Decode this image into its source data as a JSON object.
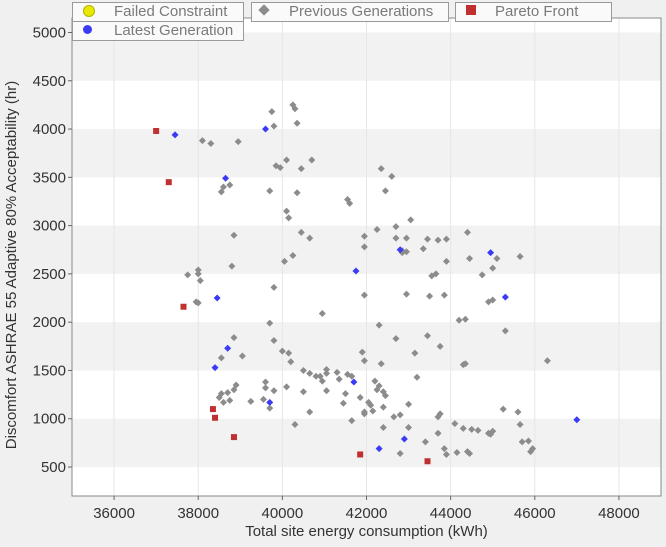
{
  "colors": {
    "plot_bg": "#ffffff",
    "band": "#f2f2f2",
    "page_bg": "#f0f0f0",
    "previous": "#8c8c8c",
    "latest": "#3b3bf5",
    "pareto": "#c03030",
    "failed": "#e8e800",
    "grid": "#e6e6e6",
    "axis_text": "#333333"
  },
  "legend": {
    "failed_constraint": "Failed Constraint",
    "previous_generations": "Previous Generations",
    "pareto_front": "Pareto Front",
    "latest_generation": "Latest Generation"
  },
  "chart_data": {
    "type": "scatter",
    "xlabel": "Total site energy consumption (kWh)",
    "ylabel": "Discomfort ASHRAE 55 Adaptive 80% Acceptability (hr)",
    "xlim": [
      35000,
      49000
    ],
    "ylim": [
      200,
      5150
    ],
    "xticks": [
      "36000",
      "38000",
      "40000",
      "42000",
      "44000",
      "46000",
      "48000"
    ],
    "yticks": [
      "500",
      "1000",
      "1500",
      "2000",
      "2500",
      "3000",
      "3500",
      "4000",
      "4500",
      "5000"
    ],
    "grid": true,
    "legend_position": "top",
    "series": [
      {
        "name": "Previous Generations",
        "marker": "diamond",
        "points": [
          [
            38100,
            3880
          ],
          [
            38300,
            3850
          ],
          [
            38950,
            3870
          ],
          [
            39750,
            4180
          ],
          [
            39800,
            4030
          ],
          [
            40250,
            4250
          ],
          [
            40300,
            4210
          ],
          [
            40350,
            4060
          ],
          [
            38550,
            3350
          ],
          [
            38600,
            3400
          ],
          [
            38750,
            3420
          ],
          [
            39700,
            3360
          ],
          [
            39850,
            3620
          ],
          [
            39950,
            3600
          ],
          [
            40100,
            3680
          ],
          [
            40350,
            3340
          ],
          [
            40450,
            3590
          ],
          [
            40700,
            3680
          ],
          [
            41550,
            3270
          ],
          [
            41600,
            3230
          ],
          [
            42350,
            3590
          ],
          [
            42450,
            3360
          ],
          [
            42600,
            3510
          ],
          [
            40100,
            3150
          ],
          [
            40150,
            3080
          ],
          [
            40450,
            2930
          ],
          [
            40650,
            2870
          ],
          [
            41950,
            2780
          ],
          [
            41950,
            2890
          ],
          [
            42250,
            2960
          ],
          [
            42700,
            2870
          ],
          [
            42700,
            2990
          ],
          [
            42850,
            2720
          ],
          [
            42950,
            2870
          ],
          [
            43050,
            3060
          ],
          [
            38850,
            2900
          ],
          [
            38800,
            2580
          ],
          [
            37750,
            2490
          ],
          [
            38000,
            2500
          ],
          [
            38050,
            2430
          ],
          [
            39800,
            2360
          ],
          [
            40050,
            2630
          ],
          [
            40250,
            2690
          ],
          [
            42850,
            2740
          ],
          [
            42950,
            2730
          ],
          [
            43350,
            2760
          ],
          [
            43450,
            2860
          ],
          [
            43700,
            2850
          ],
          [
            43900,
            2860
          ],
          [
            43550,
            2480
          ],
          [
            43900,
            2630
          ],
          [
            43650,
            2500
          ],
          [
            44400,
            2930
          ],
          [
            44750,
            2490
          ],
          [
            45000,
            2560
          ],
          [
            45100,
            2660
          ],
          [
            45650,
            2680
          ],
          [
            44450,
            2660
          ],
          [
            37950,
            2210
          ],
          [
            38000,
            2200
          ],
          [
            38000,
            2540
          ],
          [
            40950,
            2090
          ],
          [
            41950,
            2280
          ],
          [
            42950,
            2290
          ],
          [
            43500,
            2270
          ],
          [
            43850,
            2280
          ],
          [
            44350,
            2030
          ],
          [
            44900,
            2210
          ],
          [
            45000,
            2230
          ],
          [
            45300,
            1910
          ],
          [
            44200,
            2020
          ],
          [
            38850,
            1840
          ],
          [
            39050,
            1650
          ],
          [
            39700,
            1990
          ],
          [
            39800,
            1810
          ],
          [
            40000,
            1700
          ],
          [
            40150,
            1680
          ],
          [
            40200,
            1590
          ],
          [
            40500,
            1500
          ],
          [
            41900,
            1690
          ],
          [
            41950,
            1600
          ],
          [
            42350,
            1570
          ],
          [
            42700,
            1830
          ],
          [
            43150,
            1680
          ],
          [
            43450,
            1860
          ],
          [
            43750,
            1750
          ],
          [
            44350,
            1570
          ],
          [
            44300,
            1560
          ],
          [
            42300,
            1970
          ],
          [
            38550,
            1630
          ],
          [
            38500,
            1220
          ],
          [
            38550,
            1260
          ],
          [
            38600,
            1170
          ],
          [
            38700,
            1270
          ],
          [
            38750,
            1190
          ],
          [
            38850,
            1300
          ],
          [
            38900,
            1350
          ],
          [
            39250,
            1180
          ],
          [
            39550,
            1200
          ],
          [
            39600,
            1320
          ],
          [
            39600,
            1380
          ],
          [
            39700,
            1110
          ],
          [
            39800,
            1290
          ],
          [
            40100,
            1330
          ],
          [
            40500,
            1280
          ],
          [
            40650,
            1470
          ],
          [
            40650,
            1070
          ],
          [
            40800,
            1440
          ],
          [
            40900,
            1440
          ],
          [
            40950,
            1390
          ],
          [
            41050,
            1510
          ],
          [
            41050,
            1470
          ],
          [
            41050,
            1290
          ],
          [
            41300,
            1480
          ],
          [
            41350,
            1410
          ],
          [
            41450,
            1160
          ],
          [
            41500,
            1260
          ],
          [
            41550,
            1460
          ],
          [
            41650,
            1440
          ],
          [
            41650,
            980
          ],
          [
            41850,
            1220
          ],
          [
            41950,
            1070
          ],
          [
            41950,
            1050
          ],
          [
            42050,
            1170
          ],
          [
            42100,
            1140
          ],
          [
            42150,
            1080
          ],
          [
            42200,
            1390
          ],
          [
            42250,
            1300
          ],
          [
            42300,
            1340
          ],
          [
            42400,
            1280
          ],
          [
            42400,
            1120
          ],
          [
            42450,
            1240
          ],
          [
            42400,
            910
          ],
          [
            42650,
            1020
          ],
          [
            42800,
            1040
          ],
          [
            43000,
            1150
          ],
          [
            43200,
            1430
          ],
          [
            43750,
            1050
          ],
          [
            43700,
            1020
          ],
          [
            43700,
            850
          ],
          [
            43850,
            690
          ],
          [
            43900,
            630
          ],
          [
            44100,
            950
          ],
          [
            44150,
            650
          ],
          [
            44300,
            900
          ],
          [
            44400,
            660
          ],
          [
            44450,
            640
          ],
          [
            44650,
            880
          ],
          [
            44900,
            850
          ],
          [
            44950,
            840
          ],
          [
            45000,
            870
          ],
          [
            45250,
            1100
          ],
          [
            45600,
            1070
          ],
          [
            45650,
            940
          ],
          [
            45700,
            760
          ],
          [
            45850,
            770
          ],
          [
            45950,
            690
          ],
          [
            45900,
            660
          ],
          [
            46300,
            1600
          ],
          [
            40300,
            940
          ],
          [
            43000,
            910
          ],
          [
            42800,
            640
          ],
          [
            43400,
            760
          ],
          [
            44500,
            890
          ]
        ]
      },
      {
        "name": "Latest Generation",
        "marker": "diamond",
        "points": [
          [
            37450,
            3940
          ],
          [
            39600,
            4000
          ],
          [
            38650,
            3490
          ],
          [
            42800,
            2750
          ],
          [
            44950,
            2720
          ],
          [
            41750,
            2530
          ],
          [
            38450,
            2250
          ],
          [
            45300,
            2260
          ],
          [
            38700,
            1730
          ],
          [
            38400,
            1530
          ],
          [
            41700,
            1380
          ],
          [
            39700,
            1170
          ],
          [
            42300,
            690
          ],
          [
            42900,
            790
          ],
          [
            47000,
            990
          ]
        ]
      },
      {
        "name": "Pareto Front",
        "marker": "square",
        "points": [
          [
            37000,
            3980
          ],
          [
            37300,
            3450
          ],
          [
            37650,
            2160
          ],
          [
            38350,
            1100
          ],
          [
            38400,
            1010
          ],
          [
            38850,
            810
          ],
          [
            41850,
            630
          ],
          [
            43450,
            560
          ]
        ]
      },
      {
        "name": "Failed Constraint",
        "marker": "circle",
        "points": []
      }
    ]
  }
}
